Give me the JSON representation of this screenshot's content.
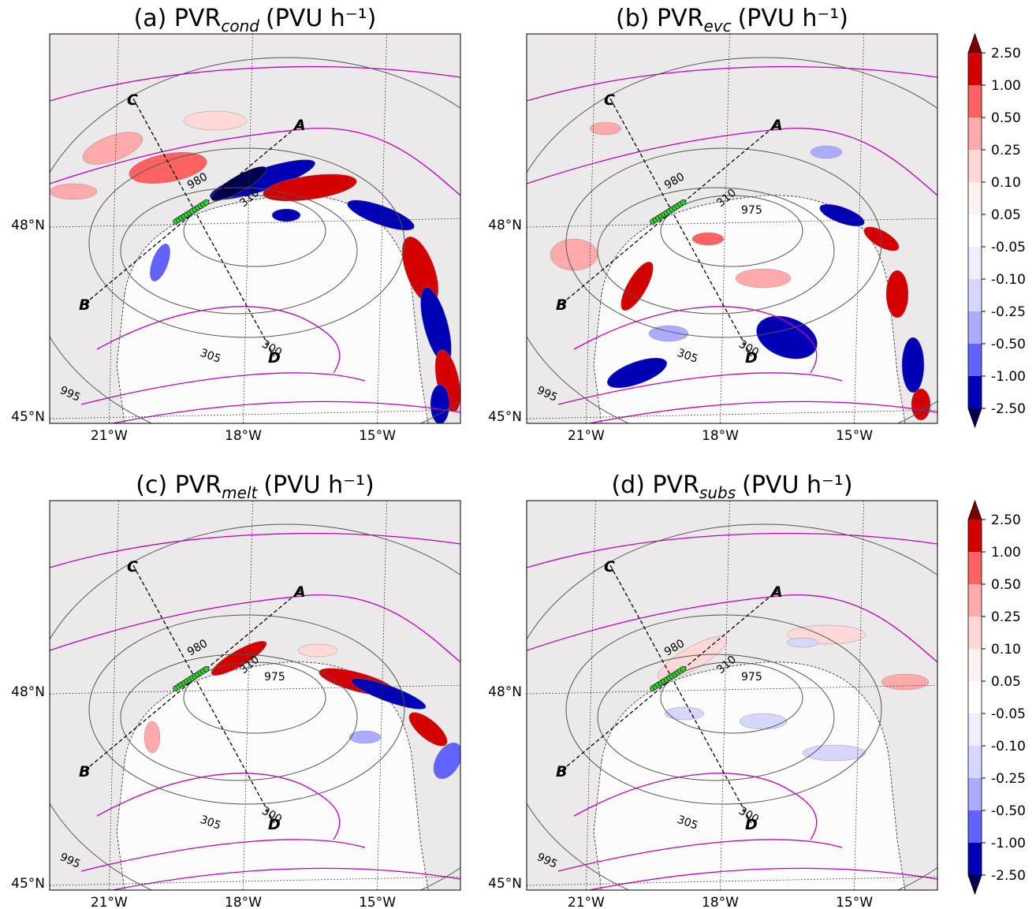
{
  "panels": [
    {
      "title": "(a) PVR",
      "subscript": "cond",
      "units": "(PVU h⁻¹)",
      "contour_labels": [
        980,
        995,
        305,
        300,
        310
      ]
    },
    {
      "title": "(b) PVR",
      "subscript": "evc",
      "units": "(PVU h⁻¹)",
      "contour_labels": [
        980,
        975,
        995,
        305,
        300,
        310
      ]
    },
    {
      "title": "(c) PVR",
      "subscript": "melt",
      "units": "(PVU h⁻¹)",
      "contour_labels": [
        980,
        975,
        995,
        305,
        300,
        310
      ]
    },
    {
      "title": "(d) PVR",
      "subscript": "subs",
      "units": "(PVU h⁻¹)",
      "contour_labels": [
        980,
        975,
        995,
        305,
        300,
        310
      ]
    }
  ],
  "xlim": [
    -22.33,
    -13.14
  ],
  "ylim": [
    44.89,
    50.99
  ],
  "lat_ticks": [
    {
      "value": 48,
      "label": "48°N"
    },
    {
      "value": 45,
      "label": "45°N"
    }
  ],
  "lon_ticks": [
    {
      "value": -21,
      "label": "21°W"
    },
    {
      "value": -18,
      "label": "18°W"
    },
    {
      "value": -15,
      "label": "15°W"
    }
  ],
  "section_labels": [
    "A",
    "B",
    "C",
    "D"
  ],
  "colorbar": {
    "ticks": [
      {
        "value": 2.5,
        "label": "2.50"
      },
      {
        "value": 1,
        "label": "1.00"
      },
      {
        "value": 0.5,
        "label": "0.50"
      },
      {
        "value": 0.25,
        "label": "0.25"
      },
      {
        "value": 0.1,
        "label": "0.10"
      },
      {
        "value": 0.05,
        "label": "0.05"
      },
      {
        "value": -0.05,
        "label": "-0.05"
      },
      {
        "value": -0.1,
        "label": "-0.10"
      },
      {
        "value": -0.25,
        "label": "-0.25"
      },
      {
        "value": -0.5,
        "label": "-0.50"
      },
      {
        "value": -1,
        "label": "-1.00"
      },
      {
        "value": -2.5,
        "label": "-2.50"
      }
    ],
    "colors": [
      "#7a0000",
      "#d40000",
      "#ff6262",
      "#ffaaaa",
      "#ffd8d8",
      "#fff0f0",
      "#ffffff",
      "#eeeeff",
      "#d6d6ff",
      "#ababff",
      "#6262ff",
      "#0000b4",
      "#000050"
    ]
  }
}
